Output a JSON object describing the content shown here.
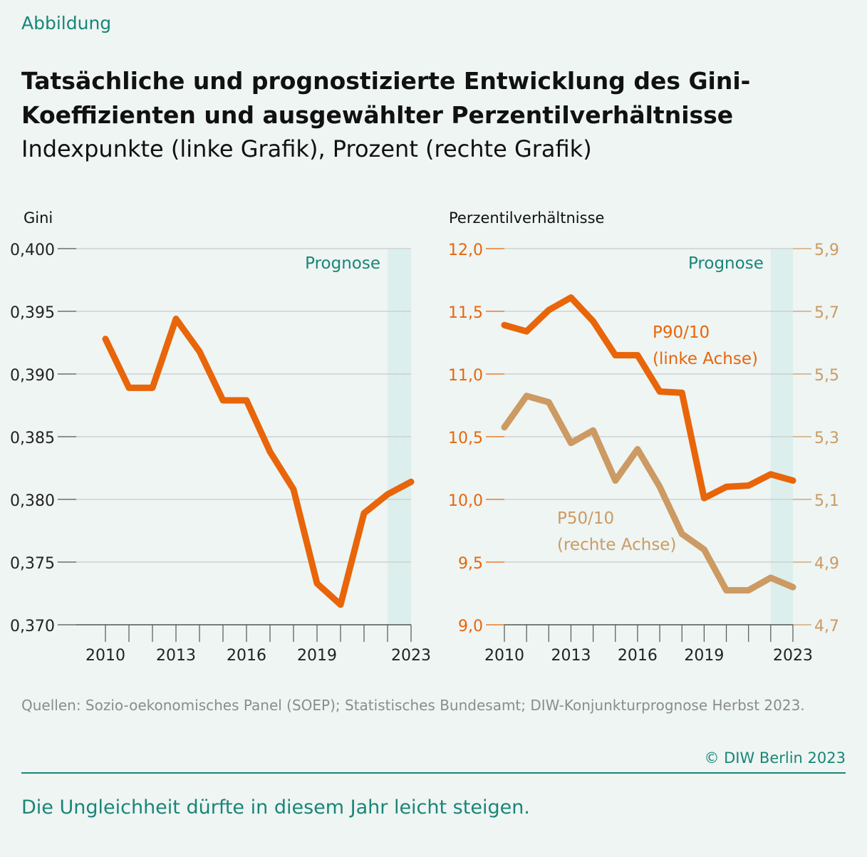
{
  "label": "Abbildung",
  "title": "Tatsächliche und prognostizierte Entwicklung des Gini-Koeffizienten und ausgewählter Perzentilverhältnisse",
  "subtitle": "Indexpunkte (linke Grafik), Prozent (rechte Grafik)",
  "source": "Quellen: Sozio-oekonomisches Panel (SOEP); Statistisches Bundesamt; DIW-Konjunkturprognose Herbst 2023.",
  "copyright": "© DIW Berlin 2023",
  "caption": "Die Ungleichheit dürfte in diesem Jahr leicht steigen.",
  "colors": {
    "accent": "#1a8577",
    "p90": "#e8650a",
    "p50": "#cc9a62",
    "forecast_band": "#dcefec"
  },
  "chart_data": [
    {
      "type": "line",
      "ylabel": "Gini",
      "forecast_label": "Prognose",
      "forecast_from": 2022,
      "x": [
        2010,
        2011,
        2012,
        2013,
        2014,
        2015,
        2016,
        2017,
        2018,
        2019,
        2020,
        2021,
        2022,
        2023
      ],
      "xticks": [
        "2010",
        "2013",
        "2016",
        "2019",
        "2023"
      ],
      "ylim": [
        0.37,
        0.4
      ],
      "yticks": [
        "0,400",
        "0,395",
        "0,390",
        "0,385",
        "0,380",
        "0,375",
        "0,370"
      ],
      "grid": true,
      "series": [
        {
          "values": [
            0.3928,
            0.3889,
            0.3889,
            0.3944,
            0.3918,
            0.3879,
            0.3879,
            0.3838,
            0.3808,
            0.3733,
            0.3716,
            0.3789,
            0.3804,
            0.3814
          ]
        }
      ]
    },
    {
      "type": "line",
      "ylabel": "Perzentilverhältnisse",
      "forecast_label": "Prognose",
      "forecast_from": 2022,
      "x": [
        2010,
        2011,
        2012,
        2013,
        2014,
        2015,
        2016,
        2017,
        2018,
        2019,
        2020,
        2021,
        2022,
        2023
      ],
      "xticks": [
        "2010",
        "2013",
        "2016",
        "2019",
        "2023"
      ],
      "ylim_left": [
        9.0,
        12.0
      ],
      "yticks_left": [
        "12,0",
        "11,5",
        "11,0",
        "10,5",
        "10,0",
        "9,5",
        "9,0"
      ],
      "ylim_right": [
        4.7,
        5.9
      ],
      "yticks_right": [
        "5,9",
        "5,7",
        "5,5",
        "5,3",
        "5,1",
        "4,9",
        "4,7"
      ],
      "grid": true,
      "series": [
        {
          "name": "P90/10",
          "annotation": "(linke Achse)",
          "axis": "left",
          "values": [
            11.39,
            11.34,
            11.51,
            11.61,
            11.42,
            11.15,
            11.15,
            10.86,
            10.85,
            10.01,
            10.1,
            10.11,
            10.2,
            10.15
          ]
        },
        {
          "name": "P50/10",
          "annotation": "(rechte Achse)",
          "axis": "right",
          "values": [
            5.33,
            5.43,
            5.41,
            5.28,
            5.32,
            5.16,
            5.26,
            5.14,
            4.99,
            4.94,
            4.81,
            4.81,
            4.85,
            4.82
          ]
        }
      ]
    }
  ]
}
